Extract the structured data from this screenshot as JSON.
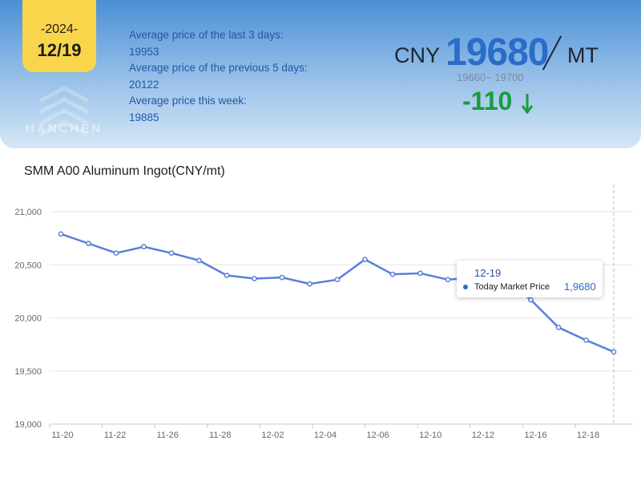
{
  "header": {
    "year": "-2024-",
    "date": "12/19",
    "watermark": "HANCHEN",
    "stats": [
      {
        "label": "Average price of the last 3 days:",
        "value": "19953"
      },
      {
        "label": "Average price of the previous 5 days:",
        "value": "20122"
      },
      {
        "label": "Average price this week:",
        "value": "19885"
      }
    ],
    "currency": "CNY",
    "price": "19680",
    "unit": "MT",
    "range": "19660~ 19700",
    "change": "-110",
    "change_color": "#1a9c3a",
    "accent_color": "#2a6cc9",
    "badge_color": "#f8d54b",
    "change_icon": "down-arrow-icon"
  },
  "tooltip": {
    "date": "12-19",
    "label": "Today Market Price",
    "value": "1,9680"
  },
  "chart_data": {
    "type": "line",
    "title": "SMM A00 Aluminum Ingot(CNY/mt)",
    "xlabel": "",
    "ylabel": "",
    "ylim": [
      19000,
      21000
    ],
    "yticks": [
      "19,000",
      "19,500",
      "20,000",
      "20,500",
      "21,000"
    ],
    "xticks": [
      "11-20",
      "11-22",
      "11-26",
      "11-28",
      "12-02",
      "12-04",
      "12-06",
      "12-10",
      "12-12",
      "12-16",
      "12-18"
    ],
    "grid": true,
    "line_color": "#5b7fdb",
    "series": [
      {
        "values": [
          20790,
          20700,
          20610,
          20670,
          20610,
          20540,
          20400,
          20370,
          20380,
          20320,
          20360,
          20550,
          20410,
          20420,
          20360,
          20380,
          20370,
          20170,
          19910,
          19790,
          19680
        ]
      }
    ]
  }
}
